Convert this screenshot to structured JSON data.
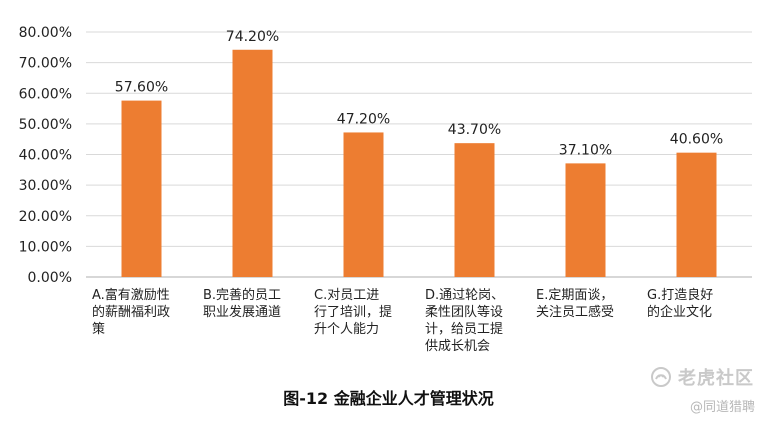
{
  "chart_data": {
    "type": "bar",
    "categories": [
      [
        "A.富有激励性",
        "的薪酬福利政",
        "策"
      ],
      [
        "B.完善的员工",
        "职业发展通道"
      ],
      [
        "C.对员工进",
        "行了培训，提",
        "升个人能力"
      ],
      [
        "D.通过轮岗、",
        "柔性团队等设",
        "计，给员工提",
        "供成长机会"
      ],
      [
        "E.定期面谈，",
        "关注员工感受"
      ],
      [
        "G.打造良好",
        "的企业文化"
      ]
    ],
    "values": [
      57.6,
      74.2,
      47.2,
      43.7,
      37.1,
      40.6
    ],
    "value_labels": [
      "57.60%",
      "74.20%",
      "47.20%",
      "43.70%",
      "37.10%",
      "40.60%"
    ],
    "ylim": [
      0,
      80
    ],
    "yticks": [
      0,
      10,
      20,
      30,
      40,
      50,
      60,
      70,
      80
    ],
    "ytick_labels": [
      "0.00%",
      "10.00%",
      "20.00%",
      "30.00%",
      "40.00%",
      "50.00%",
      "60.00%",
      "70.00%",
      "80.00%"
    ],
    "grid": true,
    "legend": "none",
    "bar_color": "#ed7d31",
    "grid_color": "#d9d9d9",
    "axis_color": "#bfbfbf",
    "text_color": "#222222"
  },
  "figure": {
    "caption": "图-12 金融企业人才管理状况"
  },
  "watermark": {
    "main": "老虎社区",
    "sub": "@同道猎聘",
    "icon": "tiger-logo-icon"
  }
}
